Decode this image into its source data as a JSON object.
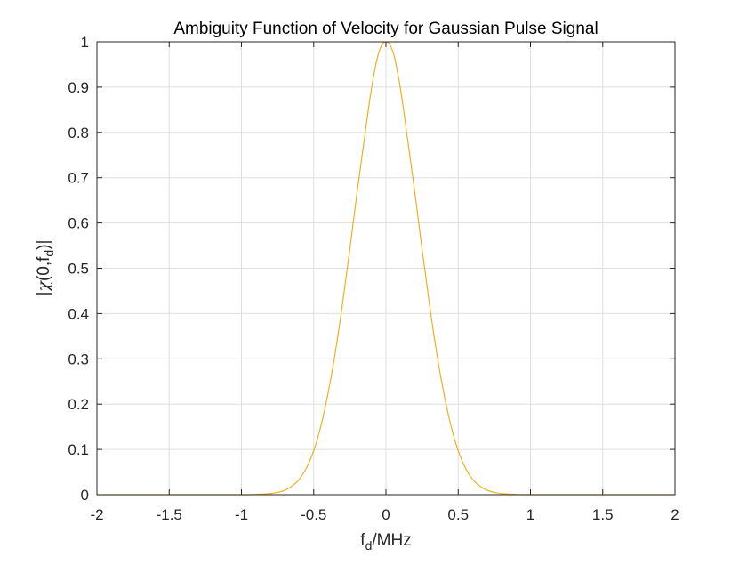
{
  "chart_data": {
    "type": "line",
    "title": "Ambiguity Function of Velocity for Gaussian Pulse Signal",
    "xlabel": {
      "base": "f",
      "sub": "d",
      "rest": "/MHz"
    },
    "ylabel": {
      "pre": "|",
      "chi": "χ",
      "mid": "(0,f",
      "sub": "d",
      "post": ")|"
    },
    "xlim": [
      -2,
      2
    ],
    "ylim": [
      0,
      1
    ],
    "xticks": [
      -2,
      -1.5,
      -1,
      -0.5,
      0,
      0.5,
      1,
      1.5,
      2
    ],
    "xtick_labels": [
      "-2",
      "-1.5",
      "-1",
      "-0.5",
      "0",
      "0.5",
      "1",
      "1.5",
      "2"
    ],
    "yticks": [
      0,
      0.1,
      0.2,
      0.3,
      0.4,
      0.5,
      0.6,
      0.7,
      0.8,
      0.9,
      1
    ],
    "ytick_labels": [
      "0",
      "0.1",
      "0.2",
      "0.3",
      "0.4",
      "0.5",
      "0.6",
      "0.7",
      "0.8",
      "0.9",
      "1"
    ],
    "grid": true,
    "series": [
      {
        "color": "#EDB120",
        "x": [
          -2,
          -1.5,
          -1,
          -0.9,
          -0.8,
          -0.75,
          -0.7,
          -0.65,
          -0.6,
          -0.55,
          -0.5,
          -0.45,
          -0.4,
          -0.35,
          -0.3,
          -0.25,
          -0.2,
          -0.15,
          -0.1,
          -0.05,
          0,
          0.05,
          0.1,
          0.15,
          0.2,
          0.25,
          0.3,
          0.35,
          0.4,
          0.45,
          0.5,
          0.55,
          0.6,
          0.65,
          0.7,
          0.75,
          0.8,
          0.9,
          1,
          1.5,
          2
        ],
        "y": [
          0,
          0,
          0,
          0.0005,
          0.0025,
          0.005,
          0.01,
          0.019,
          0.034,
          0.059,
          0.097,
          0.152,
          0.225,
          0.315,
          0.423,
          0.542,
          0.667,
          0.784,
          0.897,
          0.976,
          1,
          0.976,
          0.897,
          0.784,
          0.667,
          0.542,
          0.423,
          0.315,
          0.225,
          0.152,
          0.097,
          0.059,
          0.034,
          0.019,
          0.01,
          0.005,
          0.0025,
          0.0005,
          0,
          0,
          0
        ]
      }
    ]
  }
}
